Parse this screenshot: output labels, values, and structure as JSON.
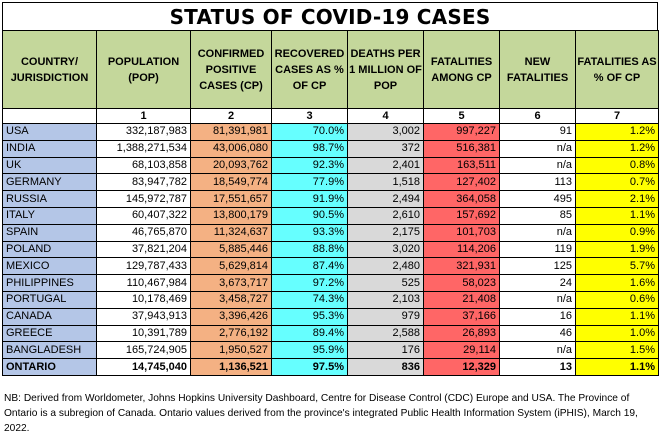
{
  "title": "STATUS OF COVID-19 CASES",
  "colors": {
    "header_bg": "#c4d79b",
    "country_bg": "#b4c6e7",
    "population_bg": "#ffffff",
    "cp_bg": "#f4b183",
    "recovered_bg": "#66ffff",
    "deaths_bg": "#d9d9d9",
    "fatalities_bg": "#ff6666",
    "new_bg": "#ffffff",
    "pct_bg": "#ffff00"
  },
  "headers": [
    "COUNTRY/ JURISDICTION",
    "POPULATION (POP)",
    "CONFIRMED POSITIVE CASES (CP)",
    "RECOVERED CASES AS % OF CP",
    "DEATHS PER 1 MILLION OF POP",
    "FATALITIES AMONG CP",
    "NEW FATALITIES",
    "FATALITIES AS % OF CP"
  ],
  "column_numbers": [
    "",
    "1",
    "2",
    "3",
    "4",
    "5",
    "6",
    "7"
  ],
  "rows": [
    [
      "USA",
      "332,187,983",
      "81,391,981",
      "70.0%",
      "3,002",
      "997,227",
      "91",
      "1.2%"
    ],
    [
      "INDIA",
      "1,388,271,534",
      "43,006,080",
      "98.7%",
      "372",
      "516,381",
      "n/a",
      "1.2%"
    ],
    [
      "UK",
      "68,103,858",
      "20,093,762",
      "92.3%",
      "2,401",
      "163,511",
      "n/a",
      "0.8%"
    ],
    [
      "GERMANY",
      "83,947,782",
      "18,549,774",
      "77.9%",
      "1,518",
      "127,402",
      "113",
      "0.7%"
    ],
    [
      "RUSSIA",
      "145,972,787",
      "17,551,657",
      "91.9%",
      "2,494",
      "364,058",
      "495",
      "2.1%"
    ],
    [
      "ITALY",
      "60,407,322",
      "13,800,179",
      "90.5%",
      "2,610",
      "157,692",
      "85",
      "1.1%"
    ],
    [
      "SPAIN",
      "46,765,870",
      "11,324,637",
      "93.3%",
      "2,175",
      "101,703",
      "n/a",
      "0.9%"
    ],
    [
      "POLAND",
      "37,821,204",
      "5,885,446",
      "88.8%",
      "3,020",
      "114,206",
      "119",
      "1.9%"
    ],
    [
      "MEXICO",
      "129,787,433",
      "5,629,814",
      "87.4%",
      "2,480",
      "321,931",
      "125",
      "5.7%"
    ],
    [
      "PHILIPPINES",
      "110,467,984",
      "3,673,717",
      "97.2%",
      "525",
      "58,023",
      "24",
      "1.6%"
    ],
    [
      "PORTUGAL",
      "10,178,469",
      "3,458,727",
      "74.3%",
      "2,103",
      "21,408",
      "n/a",
      "0.6%"
    ],
    [
      "CANADA",
      "37,943,913",
      "3,396,426",
      "95.3%",
      "979",
      "37,166",
      "16",
      "1.1%"
    ],
    [
      "GREECE",
      "10,391,789",
      "2,776,192",
      "89.4%",
      "2,588",
      "26,893",
      "46",
      "1.0%"
    ],
    [
      "BANGLADESH",
      "165,724,905",
      "1,950,527",
      "95.9%",
      "176",
      "29,114",
      "n/a",
      "1.5%"
    ]
  ],
  "ontario": [
    "ONTARIO",
    "14,745,040",
    "1,136,521",
    "97.5%",
    "836",
    "12,329",
    "13",
    "1.1%"
  ],
  "note": "NB: Derived from Worldometer, Johns Hopkins University Dashboard, Centre for Disease Control (CDC) Europe and USA. The Province of Ontario is a subregion of Canada. Ontario values derived from the province's integrated Public Health Information System (iPHIS), March 19, 2022."
}
